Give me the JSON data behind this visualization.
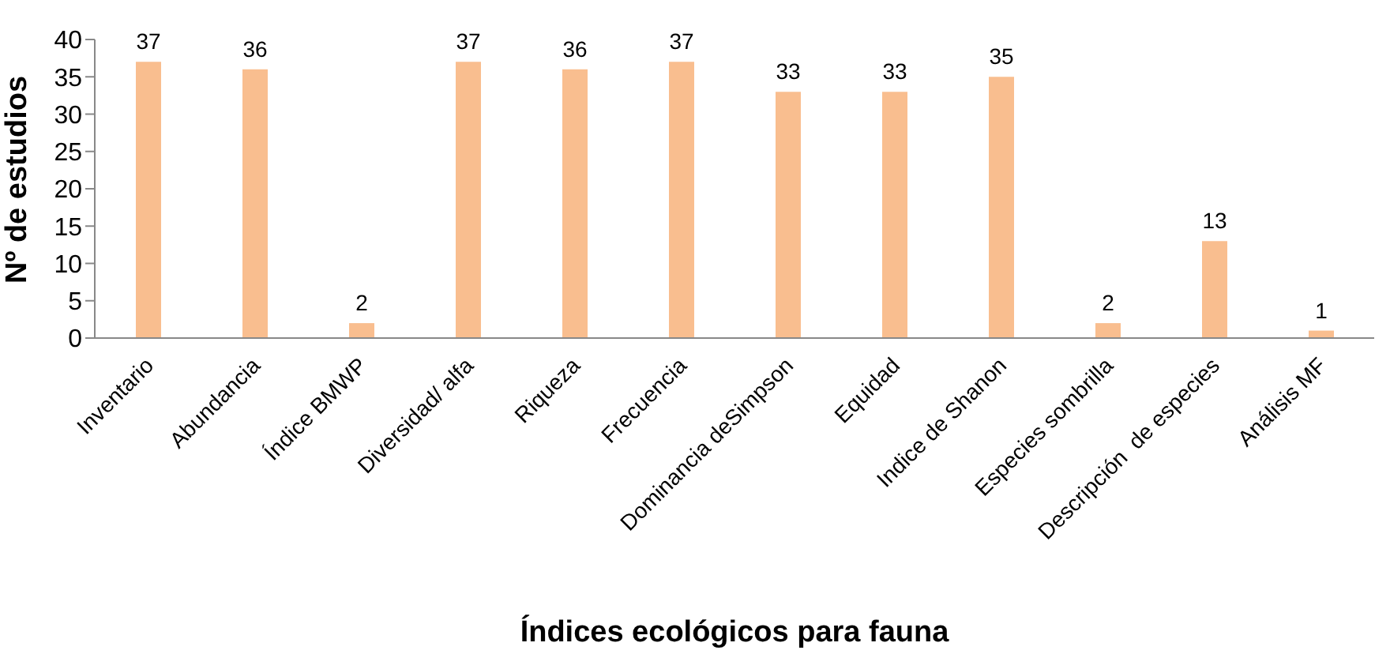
{
  "chart_data": {
    "type": "bar",
    "xlabel": "Índices ecológicos para fauna",
    "ylabel": "Nº de estudios",
    "categories": [
      "Inventario",
      "Abundancia",
      "Índice BMWP",
      "Diversidad/ alfa",
      "Riqueza",
      "Frecuencia",
      "Dominancia deSimpson",
      "Equidad",
      "Indice de Shanon",
      "Especies sombrilla",
      "Descripción  de especies",
      "Análisis MF"
    ],
    "values": [
      37,
      36,
      2,
      37,
      36,
      37,
      33,
      33,
      35,
      2,
      13,
      1
    ],
    "color": "#f9be8f",
    "ylim": [
      0,
      40
    ],
    "yticks": [
      0,
      5,
      10,
      15,
      20,
      25,
      30,
      35,
      40
    ],
    "grid": false,
    "data_labels": true
  }
}
